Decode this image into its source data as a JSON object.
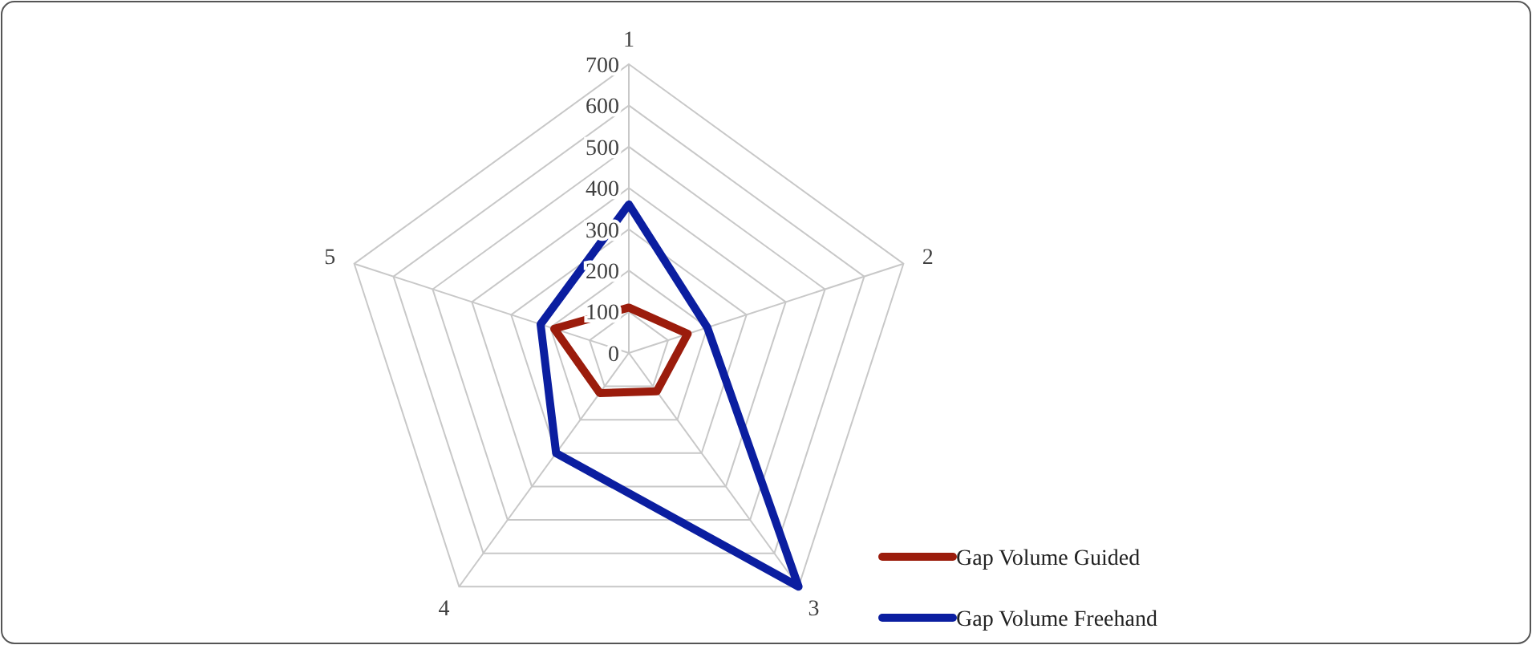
{
  "chart_data": {
    "type": "radar",
    "categories": [
      "1",
      "2",
      "3",
      "4",
      "5"
    ],
    "ylim": [
      0,
      700
    ],
    "yticks": [
      0,
      100,
      200,
      300,
      400,
      500,
      600,
      700
    ],
    "grid": true,
    "legend": "bottom right",
    "series": [
      {
        "name": "Gap Volume Guided",
        "color": "#9b1c0c",
        "values": [
          110,
          150,
          115,
          120,
          190
        ]
      },
      {
        "name": "Gap Volume Freehand",
        "color": "#0b1ea0",
        "values": [
          360,
          200,
          700,
          300,
          225
        ]
      }
    ]
  }
}
